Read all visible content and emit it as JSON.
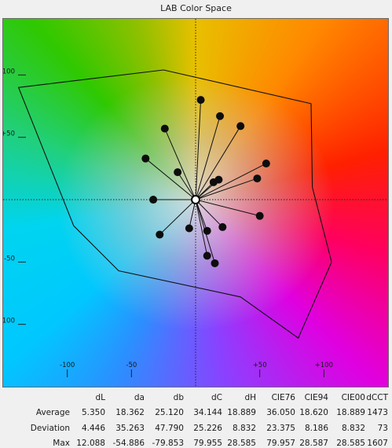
{
  "chart_data": {
    "type": "scatter",
    "title": "LAB Color Space",
    "xlabel": "",
    "ylabel": "",
    "xlim": [
      -150,
      150
    ],
    "ylim": [
      -150,
      145
    ],
    "x_ticks": [
      {
        "v": -100,
        "label": "-100"
      },
      {
        "v": -50,
        "label": "-50"
      },
      {
        "v": 50,
        "label": "+50"
      },
      {
        "v": 100,
        "label": "+100"
      }
    ],
    "y_ticks": [
      {
        "v": 100,
        "label": "+100"
      },
      {
        "v": 50,
        "label": "+50"
      },
      {
        "v": -50,
        "label": "-50"
      },
      {
        "v": -100,
        "label": "-100"
      }
    ],
    "grid": false,
    "origin": [
      0,
      0
    ],
    "gamut_boundary": [
      [
        -138,
        90
      ],
      [
        -25,
        104
      ],
      [
        90,
        77
      ],
      [
        91,
        10
      ],
      [
        106,
        -50
      ],
      [
        80,
        -111
      ],
      [
        35,
        -78
      ],
      [
        -60,
        -57
      ],
      [
        -95,
        -21
      ],
      [
        -138,
        90
      ]
    ],
    "points": [
      [
        4,
        80
      ],
      [
        19,
        67
      ],
      [
        35,
        59
      ],
      [
        -24,
        57
      ],
      [
        -39,
        33
      ],
      [
        -14,
        22
      ],
      [
        55,
        29
      ],
      [
        48,
        17
      ],
      [
        18,
        16
      ],
      [
        14,
        14
      ],
      [
        -33,
        0
      ],
      [
        50,
        -13
      ],
      [
        21,
        -22
      ],
      [
        9,
        -25
      ],
      [
        -5,
        -23
      ],
      [
        -28,
        -28
      ],
      [
        9,
        -45
      ],
      [
        15,
        -51
      ]
    ]
  },
  "stats": {
    "headers": [
      "dL",
      "da",
      "db",
      "dC",
      "dH",
      "CIE76",
      "CIE94",
      "CIE00",
      "dCCT"
    ],
    "rows": [
      {
        "label": "Average",
        "values": [
          "5.350",
          "18.362",
          "25.120",
          "34.144",
          "18.889",
          "36.050",
          "18.620",
          "18.889",
          "1473"
        ]
      },
      {
        "label": "Deviation",
        "values": [
          "4.446",
          "35.263",
          "47.790",
          "25.226",
          "8.832",
          "23.375",
          "8.186",
          "8.832",
          "73"
        ]
      },
      {
        "label": "Max",
        "values": [
          "12.088",
          "-54.886",
          "-79.853",
          "79.955",
          "28.585",
          "79.957",
          "28.587",
          "28.585",
          "1607"
        ]
      }
    ]
  }
}
